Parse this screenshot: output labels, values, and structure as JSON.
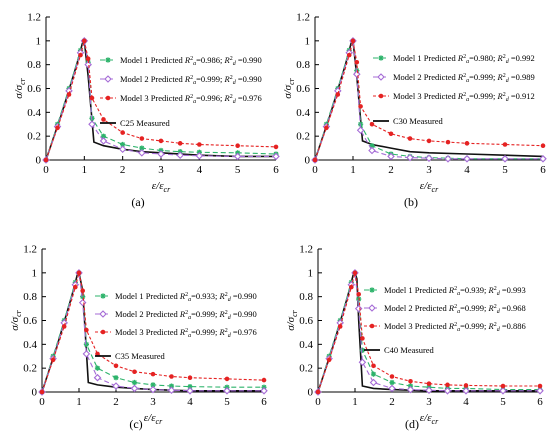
{
  "chart_data": [
    {
      "type": "line",
      "panel_label": "(a)",
      "xlabel": "ε/ε",
      "xlabel_sub": "cr",
      "ylabel": "σ/σ",
      "ylabel_sub": "cr",
      "xlim": [
        0,
        6
      ],
      "ylim": [
        0,
        1.2
      ],
      "xticks": [
        0,
        1,
        2,
        3,
        4,
        5,
        6
      ],
      "yticks": [
        0,
        0.2,
        0.4,
        0.6,
        0.8,
        1,
        1.2
      ],
      "grid": false,
      "legend": "center-right",
      "series": [
        {
          "name": "Model 1 Predicted",
          "r2a": "0.986",
          "r2d": "0.990",
          "color": "#2db36b",
          "marker": "star",
          "dash": "5,3",
          "x": [
            0,
            0.3,
            0.6,
            0.9,
            1.0,
            1.1,
            1.2,
            1.5,
            2.0,
            2.5,
            3.0,
            3.5,
            4.0,
            5.0,
            6.0
          ],
          "y": [
            0,
            0.3,
            0.6,
            0.92,
            1.0,
            0.82,
            0.35,
            0.2,
            0.13,
            0.1,
            0.08,
            0.07,
            0.065,
            0.06,
            0.05
          ]
        },
        {
          "name": "Model 2 Predicted",
          "r2a": "0.999",
          "r2d": "0.990",
          "color": "#a56bd6",
          "marker": "diamond",
          "dash": "5,3",
          "x": [
            0,
            0.3,
            0.6,
            0.9,
            1.0,
            1.1,
            1.2,
            1.5,
            2.0,
            2.5,
            3.0,
            3.5,
            4.0,
            5.0,
            6.0
          ],
          "y": [
            0,
            0.28,
            0.58,
            0.9,
            1.0,
            0.8,
            0.3,
            0.16,
            0.09,
            0.06,
            0.05,
            0.04,
            0.035,
            0.03,
            0.03
          ]
        },
        {
          "name": "Model 3 Predicted",
          "r2a": "0.996",
          "r2d": "0.976",
          "color": "#e52222",
          "marker": "circle",
          "dash": "3,2",
          "x": [
            0,
            0.3,
            0.6,
            0.9,
            1.0,
            1.1,
            1.2,
            1.5,
            2.0,
            2.5,
            3.0,
            3.5,
            4.0,
            5.0,
            6.0
          ],
          "y": [
            0,
            0.27,
            0.55,
            0.88,
            1.0,
            0.85,
            0.52,
            0.34,
            0.23,
            0.18,
            0.16,
            0.14,
            0.13,
            0.12,
            0.11
          ]
        },
        {
          "name": "C25 Measured",
          "color": "#111111",
          "marker": "none",
          "dash": "none",
          "x": [
            0,
            0.4,
            0.8,
            0.95,
            1.0,
            1.1,
            1.25,
            1.5,
            2.0,
            2.5,
            3.0,
            4.0,
            5.0,
            6.0
          ],
          "y": [
            0,
            0.38,
            0.8,
            0.98,
            1.0,
            0.7,
            0.15,
            0.12,
            0.09,
            0.07,
            0.06,
            0.04,
            0.03,
            0.03
          ]
        }
      ]
    },
    {
      "type": "line",
      "panel_label": "(b)",
      "xlabel": "ε/ε",
      "xlabel_sub": "cr",
      "ylabel": "σ/σ",
      "ylabel_sub": "cr",
      "xlim": [
        0,
        6
      ],
      "ylim": [
        0,
        1.2
      ],
      "xticks": [
        0,
        1,
        2,
        3,
        4,
        5,
        6
      ],
      "yticks": [
        0,
        0.2,
        0.4,
        0.6,
        0.8,
        1,
        1.2
      ],
      "grid": false,
      "legend": "center-right",
      "series": [
        {
          "name": "Model 1 Predicted",
          "r2a": "0.980",
          "r2d": "0.992",
          "color": "#2db36b",
          "marker": "star",
          "dash": "5,3",
          "x": [
            0,
            0.3,
            0.6,
            0.9,
            1.0,
            1.1,
            1.2,
            1.5,
            2.0,
            2.5,
            3.0,
            3.5,
            4.0,
            5.0,
            6.0
          ],
          "y": [
            0,
            0.3,
            0.6,
            0.92,
            1.0,
            0.75,
            0.3,
            0.12,
            0.05,
            0.03,
            0.02,
            0.015,
            0.01,
            0.01,
            0.01
          ]
        },
        {
          "name": "Model 2 Predicted",
          "r2a": "0.999",
          "r2d": "0.989",
          "color": "#a56bd6",
          "marker": "diamond",
          "dash": "5,3",
          "x": [
            0,
            0.3,
            0.6,
            0.9,
            1.0,
            1.1,
            1.2,
            1.5,
            2.0,
            2.5,
            3.0,
            3.5,
            4.0,
            5.0,
            6.0
          ],
          "y": [
            0,
            0.28,
            0.58,
            0.9,
            1.0,
            0.72,
            0.25,
            0.08,
            0.03,
            0.02,
            0.015,
            0.01,
            0.01,
            0.01,
            0.01
          ]
        },
        {
          "name": "Model 3 Predicted",
          "r2a": "0.999",
          "r2d": "0.912",
          "color": "#e52222",
          "marker": "circle",
          "dash": "3,2",
          "x": [
            0,
            0.3,
            0.6,
            0.9,
            1.0,
            1.1,
            1.2,
            1.5,
            2.0,
            2.5,
            3.0,
            3.5,
            4.0,
            5.0,
            6.0
          ],
          "y": [
            0,
            0.27,
            0.55,
            0.88,
            1.0,
            0.82,
            0.45,
            0.3,
            0.22,
            0.18,
            0.16,
            0.15,
            0.14,
            0.13,
            0.12
          ]
        },
        {
          "name": "C30 Measured",
          "color": "#111111",
          "marker": "none",
          "dash": "none",
          "x": [
            0,
            0.4,
            0.8,
            0.95,
            1.0,
            1.1,
            1.25,
            1.5,
            2.0,
            2.5,
            3.0,
            4.0,
            5.0,
            6.0
          ],
          "y": [
            0,
            0.38,
            0.8,
            0.98,
            1.0,
            0.7,
            0.16,
            0.13,
            0.1,
            0.07,
            0.06,
            0.05,
            0.04,
            0.03
          ]
        }
      ]
    },
    {
      "type": "line",
      "panel_label": "(c)",
      "xlabel": "ε/ε",
      "xlabel_sub": "cr",
      "ylabel": "σ/σ",
      "ylabel_sub": "cr",
      "xlim": [
        0,
        6
      ],
      "ylim": [
        0,
        1.2
      ],
      "xticks": [
        0,
        1,
        2,
        3,
        4,
        5,
        6
      ],
      "yticks": [
        0,
        0.2,
        0.4,
        0.6,
        0.8,
        1,
        1.2
      ],
      "grid": false,
      "legend": "center-right",
      "series": [
        {
          "name": "Model 1 Predicted",
          "r2a": "0.933",
          "r2d": "0.990",
          "color": "#2db36b",
          "marker": "star",
          "dash": "5,3",
          "x": [
            0,
            0.3,
            0.6,
            0.9,
            1.0,
            1.1,
            1.2,
            1.5,
            2.0,
            2.5,
            3.0,
            3.5,
            4.0,
            5.0,
            6.0
          ],
          "y": [
            0,
            0.3,
            0.6,
            0.92,
            1.0,
            0.8,
            0.4,
            0.2,
            0.12,
            0.08,
            0.06,
            0.05,
            0.045,
            0.04,
            0.04
          ]
        },
        {
          "name": "Model 2 Predicted",
          "r2a": "0.999",
          "r2d": "0.990",
          "color": "#a56bd6",
          "marker": "diamond",
          "dash": "5,3",
          "x": [
            0,
            0.3,
            0.6,
            0.9,
            1.0,
            1.1,
            1.2,
            1.5,
            2.0,
            2.5,
            3.0,
            3.5,
            4.0,
            5.0,
            6.0
          ],
          "y": [
            0,
            0.28,
            0.58,
            0.9,
            1.0,
            0.75,
            0.32,
            0.12,
            0.05,
            0.03,
            0.02,
            0.015,
            0.01,
            0.01,
            0.01
          ]
        },
        {
          "name": "Model 3 Predicted",
          "r2a": "0.999",
          "r2d": "0.976",
          "color": "#e52222",
          "marker": "circle",
          "dash": "3,2",
          "x": [
            0,
            0.3,
            0.6,
            0.9,
            1.0,
            1.1,
            1.2,
            1.5,
            2.0,
            2.5,
            3.0,
            3.5,
            4.0,
            5.0,
            6.0
          ],
          "y": [
            0,
            0.27,
            0.55,
            0.88,
            1.0,
            0.85,
            0.52,
            0.32,
            0.22,
            0.17,
            0.15,
            0.13,
            0.12,
            0.11,
            0.1
          ]
        },
        {
          "name": "C35 Measured",
          "color": "#111111",
          "marker": "none",
          "dash": "none",
          "x": [
            0,
            0.4,
            0.8,
            0.95,
            1.0,
            1.1,
            1.25,
            1.5,
            2.0,
            2.5,
            3.0,
            4.0,
            5.0,
            6.0
          ],
          "y": [
            0,
            0.38,
            0.8,
            0.98,
            1.0,
            0.85,
            0.08,
            0.06,
            0.04,
            0.03,
            0.02,
            0.01,
            0.01,
            0.01
          ]
        }
      ]
    },
    {
      "type": "line",
      "panel_label": "(d)",
      "xlabel": "ε/ε",
      "xlabel_sub": "cr",
      "ylabel": "σ/σ",
      "ylabel_sub": "cr",
      "xlim": [
        0,
        6
      ],
      "ylim": [
        0,
        1.2
      ],
      "xticks": [
        0,
        1,
        2,
        3,
        4,
        5,
        6
      ],
      "yticks": [
        0,
        0.2,
        0.4,
        0.6,
        0.8,
        1,
        1.2
      ],
      "grid": false,
      "legend": "center-right",
      "series": [
        {
          "name": "Model 1 Predicted",
          "r2a": "0.939",
          "r2d": "0.993",
          "color": "#2db36b",
          "marker": "star",
          "dash": "5,3",
          "x": [
            0,
            0.3,
            0.6,
            0.9,
            1.0,
            1.1,
            1.2,
            1.5,
            2.0,
            2.5,
            3.0,
            3.5,
            4.0,
            5.0,
            6.0
          ],
          "y": [
            0,
            0.3,
            0.6,
            0.92,
            1.0,
            0.78,
            0.35,
            0.15,
            0.08,
            0.05,
            0.04,
            0.03,
            0.03,
            0.02,
            0.02
          ]
        },
        {
          "name": "Model 2 Predicted",
          "r2a": "0.999",
          "r2d": "0.968",
          "color": "#a56bd6",
          "marker": "diamond",
          "dash": "5,3",
          "x": [
            0,
            0.3,
            0.6,
            0.9,
            1.0,
            1.1,
            1.2,
            1.5,
            2.0,
            2.5,
            3.0,
            3.5,
            4.0,
            5.0,
            6.0
          ],
          "y": [
            0,
            0.28,
            0.58,
            0.9,
            1.0,
            0.7,
            0.25,
            0.08,
            0.03,
            0.02,
            0.015,
            0.01,
            0.01,
            0.01,
            0.01
          ]
        },
        {
          "name": "Model 3 Predicted",
          "r2a": "0.999",
          "r2d": "0.886",
          "color": "#e52222",
          "marker": "circle",
          "dash": "3,2",
          "x": [
            0,
            0.3,
            0.6,
            0.9,
            1.0,
            1.1,
            1.2,
            1.5,
            2.0,
            2.5,
            3.0,
            3.5,
            4.0,
            5.0,
            6.0
          ],
          "y": [
            0,
            0.27,
            0.55,
            0.88,
            1.0,
            0.82,
            0.45,
            0.22,
            0.13,
            0.09,
            0.07,
            0.06,
            0.055,
            0.05,
            0.05
          ]
        },
        {
          "name": "C40 Measured",
          "color": "#111111",
          "marker": "none",
          "dash": "none",
          "x": [
            0,
            0.4,
            0.8,
            0.95,
            1.0,
            1.05,
            1.1,
            1.2,
            1.5,
            2.0,
            3.0,
            4.0,
            5.0,
            6.0
          ],
          "y": [
            0,
            0.38,
            0.8,
            0.98,
            1.0,
            0.95,
            0.6,
            0.05,
            0.03,
            0.02,
            0.01,
            0.01,
            0.01,
            0.01
          ]
        }
      ]
    }
  ]
}
